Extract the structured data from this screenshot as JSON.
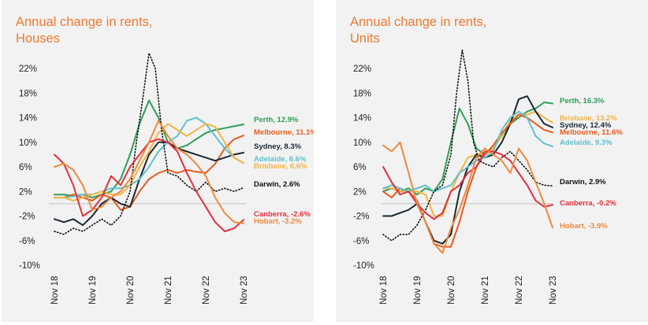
{
  "colors": {
    "accent": "#ee7a30",
    "Perth": "#2e9e57",
    "Melbourne": "#e45b1e",
    "Sydney": "#1b2733",
    "Adelaide": "#5fc0cf",
    "Brisbane": "#f2b540",
    "Darwin": "#111111",
    "Canberra": "#e2303d",
    "Hobart": "#ee8a3c",
    "zero_line": "#bfbfbf",
    "panel_bg": "#f2f2f2"
  },
  "chart_data": [
    {
      "type": "line",
      "title": "Annual change in rents,",
      "subtitle": "Houses",
      "x_tick_labels": [
        "Nov 18",
        "Nov 19",
        "Nov 20",
        "Nov 21",
        "Nov 22",
        "Nov 23"
      ],
      "y_tick_labels": [
        "22%",
        "18%",
        "14%",
        "10%",
        "6%",
        "2%",
        "-2%",
        "-6%",
        "-10%"
      ],
      "ylim": [
        -10,
        24
      ],
      "grid": false,
      "legend": "end-labels",
      "series": [
        {
          "name": "Perth",
          "end_label": "Perth, 12.9%",
          "color": "Perth",
          "dotted": false,
          "x": [
            "2018-11",
            "2019-02",
            "2019-05",
            "2019-08",
            "2019-11",
            "2020-02",
            "2020-05",
            "2020-08",
            "2020-11",
            "2021-02",
            "2021-05",
            "2021-08",
            "2021-11",
            "2022-02",
            "2022-05",
            "2022-08",
            "2022-11",
            "2023-02",
            "2023-05",
            "2023-08",
            "2023-11"
          ],
          "values": [
            1.5,
            1.5,
            1.3,
            1.5,
            1.0,
            1.5,
            2.0,
            4.0,
            8.0,
            13.0,
            16.8,
            14.0,
            10.0,
            9.0,
            9.5,
            10.5,
            11.5,
            12.0,
            12.3,
            12.6,
            12.9
          ]
        },
        {
          "name": "Melbourne",
          "end_label": "Melbourne, 11.1%",
          "color": "Melbourne",
          "dotted": false,
          "x": [
            "2018-11",
            "2019-02",
            "2019-05",
            "2019-08",
            "2019-11",
            "2020-02",
            "2020-05",
            "2020-08",
            "2020-11",
            "2021-02",
            "2021-05",
            "2021-08",
            "2021-11",
            "2022-02",
            "2022-05",
            "2022-08",
            "2022-11",
            "2023-02",
            "2023-05",
            "2023-08",
            "2023-11"
          ],
          "values": [
            1.0,
            1.0,
            1.5,
            1.0,
            0.5,
            1.5,
            1.0,
            -1.0,
            -0.5,
            2.0,
            4.0,
            5.0,
            5.5,
            5.0,
            5.5,
            5.2,
            5.0,
            6.5,
            9.0,
            10.5,
            11.1
          ]
        },
        {
          "name": "Sydney",
          "end_label": "Sydney, 8.3%",
          "color": "Sydney",
          "dotted": false,
          "x": [
            "2018-11",
            "2019-02",
            "2019-05",
            "2019-08",
            "2019-11",
            "2020-02",
            "2020-05",
            "2020-08",
            "2020-11",
            "2021-02",
            "2021-05",
            "2021-08",
            "2021-11",
            "2022-02",
            "2022-05",
            "2022-08",
            "2022-11",
            "2023-02",
            "2023-05",
            "2023-08",
            "2023-11"
          ],
          "values": [
            -2.5,
            -3.0,
            -2.5,
            -3.5,
            -2.0,
            0.0,
            1.0,
            0.0,
            -0.5,
            4.0,
            8.0,
            10.0,
            10.0,
            9.0,
            8.5,
            8.0,
            7.5,
            7.0,
            7.5,
            8.0,
            8.3
          ]
        },
        {
          "name": "Adelaide",
          "end_label": "Adelaide, 6.6%",
          "color": "Adelaide",
          "dotted": false,
          "x": [
            "2018-11",
            "2019-02",
            "2019-05",
            "2019-08",
            "2019-11",
            "2020-02",
            "2020-05",
            "2020-08",
            "2020-11",
            "2021-02",
            "2021-05",
            "2021-08",
            "2021-11",
            "2022-02",
            "2022-05",
            "2022-08",
            "2022-11",
            "2023-02",
            "2023-05",
            "2023-08",
            "2023-11"
          ],
          "values": [
            1.0,
            1.0,
            1.2,
            1.5,
            1.5,
            2.0,
            2.5,
            2.5,
            3.0,
            4.0,
            6.0,
            8.5,
            10.0,
            11.0,
            13.5,
            14.0,
            13.0,
            11.0,
            9.0,
            7.5,
            6.6
          ]
        },
        {
          "name": "Brisbane",
          "end_label": "Brisbane, 6.6%",
          "color": "Brisbane",
          "dotted": false,
          "x": [
            "2018-11",
            "2019-02",
            "2019-05",
            "2019-08",
            "2019-11",
            "2020-02",
            "2020-05",
            "2020-08",
            "2020-11",
            "2021-02",
            "2021-05",
            "2021-08",
            "2021-11",
            "2022-02",
            "2022-05",
            "2022-08",
            "2022-11",
            "2023-02",
            "2023-05",
            "2023-08",
            "2023-11"
          ],
          "values": [
            1.0,
            1.0,
            0.5,
            1.0,
            1.5,
            2.0,
            1.5,
            1.5,
            3.0,
            6.0,
            8.5,
            11.5,
            13.0,
            12.0,
            11.0,
            12.0,
            13.0,
            12.5,
            10.0,
            7.5,
            6.6
          ]
        },
        {
          "name": "Darwin",
          "end_label": "Darwin, 2.6%",
          "color": "Darwin",
          "dotted": true,
          "x": [
            "2018-11",
            "2019-02",
            "2019-05",
            "2019-08",
            "2019-11",
            "2020-02",
            "2020-05",
            "2020-08",
            "2020-11",
            "2021-01",
            "2021-03",
            "2021-05",
            "2021-07",
            "2021-09",
            "2021-11",
            "2022-02",
            "2022-05",
            "2022-08",
            "2022-11",
            "2023-02",
            "2023-05",
            "2023-08",
            "2023-11"
          ],
          "values": [
            -4.5,
            -5.0,
            -4.0,
            -4.5,
            -3.5,
            -2.5,
            -3.5,
            -2.0,
            2.0,
            10.0,
            17.0,
            24.5,
            22.0,
            12.0,
            5.0,
            4.5,
            3.0,
            2.0,
            3.5,
            2.0,
            2.5,
            2.0,
            2.6
          ]
        },
        {
          "name": "Canberra",
          "end_label": "Canberra, -2.6%",
          "color": "Canberra",
          "dotted": false,
          "x": [
            "2018-11",
            "2019-02",
            "2019-05",
            "2019-08",
            "2019-11",
            "2020-02",
            "2020-05",
            "2020-08",
            "2020-11",
            "2021-02",
            "2021-05",
            "2021-08",
            "2021-11",
            "2022-02",
            "2022-05",
            "2022-08",
            "2022-11",
            "2023-02",
            "2023-05",
            "2023-08",
            "2023-11"
          ],
          "values": [
            8.0,
            6.5,
            3.0,
            -2.0,
            -1.0,
            1.0,
            4.5,
            3.0,
            6.0,
            8.0,
            10.0,
            10.5,
            10.0,
            8.5,
            5.0,
            2.0,
            -0.5,
            -3.0,
            -4.5,
            -4.0,
            -2.6
          ]
        },
        {
          "name": "Hobart",
          "end_label": "Hobart, -3.2%",
          "color": "Hobart",
          "dotted": false,
          "x": [
            "2018-11",
            "2019-02",
            "2019-05",
            "2019-08",
            "2019-11",
            "2020-02",
            "2020-05",
            "2020-08",
            "2020-11",
            "2021-02",
            "2021-05",
            "2021-08",
            "2021-11",
            "2022-02",
            "2022-05",
            "2022-08",
            "2022-11",
            "2023-02",
            "2023-05",
            "2023-08",
            "2023-11"
          ],
          "values": [
            6.0,
            6.5,
            5.5,
            3.0,
            -1.0,
            -0.5,
            1.0,
            2.0,
            4.0,
            7.0,
            10.0,
            13.5,
            11.0,
            9.0,
            8.0,
            6.5,
            4.5,
            1.0,
            -1.5,
            -3.0,
            -3.2
          ]
        }
      ]
    },
    {
      "type": "line",
      "title": "Annual change in rents,",
      "subtitle": "Units",
      "x_tick_labels": [
        "Nov 18",
        "Nov 19",
        "Nov 20",
        "Nov 21",
        "Nov 22",
        "Nov 23"
      ],
      "y_tick_labels": [
        "22%",
        "18%",
        "14%",
        "10%",
        "6%",
        "2%",
        "-2%",
        "-6%",
        "-10%"
      ],
      "ylim": [
        -10,
        24
      ],
      "grid": false,
      "legend": "end-labels",
      "series": [
        {
          "name": "Perth",
          "end_label": "Perth, 16.3%",
          "color": "Perth",
          "dotted": false,
          "x": [
            "2018-11",
            "2019-02",
            "2019-05",
            "2019-08",
            "2019-11",
            "2020-02",
            "2020-05",
            "2020-08",
            "2020-11",
            "2021-02",
            "2021-05",
            "2021-08",
            "2021-11",
            "2022-02",
            "2022-05",
            "2022-08",
            "2022-11",
            "2023-02",
            "2023-05",
            "2023-08",
            "2023-11"
          ],
          "values": [
            2.0,
            2.5,
            2.0,
            2.5,
            1.5,
            2.5,
            2.0,
            4.0,
            10.0,
            15.5,
            13.0,
            9.0,
            8.0,
            9.0,
            11.0,
            13.0,
            14.0,
            15.0,
            15.5,
            16.5,
            16.3
          ]
        },
        {
          "name": "Brisbane",
          "end_label": "Brisbane, 13.2%",
          "color": "Brisbane",
          "dotted": false,
          "x": [
            "2018-11",
            "2019-02",
            "2019-05",
            "2019-08",
            "2019-11",
            "2020-02",
            "2020-05",
            "2020-08",
            "2020-11",
            "2021-02",
            "2021-05",
            "2021-08",
            "2021-11",
            "2022-02",
            "2022-05",
            "2022-08",
            "2022-11",
            "2023-02",
            "2023-05",
            "2023-08",
            "2023-11"
          ],
          "values": [
            2.5,
            2.5,
            2.0,
            2.0,
            2.0,
            1.5,
            -2.0,
            -2.0,
            2.0,
            5.0,
            7.5,
            8.0,
            8.0,
            9.0,
            11.0,
            13.5,
            14.5,
            14.5,
            15.0,
            14.0,
            13.2
          ]
        },
        {
          "name": "Sydney",
          "end_label": "Sydney, 12.4%",
          "color": "Sydney",
          "dotted": false,
          "x": [
            "2018-11",
            "2019-02",
            "2019-05",
            "2019-08",
            "2019-11",
            "2020-02",
            "2020-05",
            "2020-08",
            "2020-11",
            "2021-02",
            "2021-05",
            "2021-08",
            "2021-11",
            "2022-02",
            "2022-05",
            "2022-08",
            "2022-11",
            "2023-02",
            "2023-05",
            "2023-08",
            "2023-11"
          ],
          "values": [
            -2.0,
            -2.0,
            -1.5,
            -1.0,
            0.0,
            -3.0,
            -6.0,
            -6.5,
            -5.0,
            2.0,
            6.0,
            8.0,
            7.5,
            8.0,
            10.0,
            13.0,
            17.0,
            17.5,
            15.0,
            13.0,
            12.4
          ]
        },
        {
          "name": "Melbourne",
          "end_label": "Melbourne, 11.6%",
          "color": "Melbourne",
          "dotted": false,
          "x": [
            "2018-11",
            "2019-02",
            "2019-05",
            "2019-08",
            "2019-11",
            "2020-02",
            "2020-05",
            "2020-08",
            "2020-11",
            "2021-02",
            "2021-05",
            "2021-08",
            "2021-11",
            "2022-02",
            "2022-05",
            "2022-08",
            "2022-11",
            "2023-02",
            "2023-05",
            "2023-08",
            "2023-11"
          ],
          "values": [
            2.0,
            1.0,
            2.5,
            2.0,
            0.5,
            -3.0,
            -6.5,
            -7.0,
            -7.0,
            -3.0,
            2.0,
            6.0,
            8.0,
            9.5,
            11.5,
            13.0,
            14.5,
            14.0,
            13.0,
            12.0,
            11.6
          ]
        },
        {
          "name": "Adelaide",
          "end_label": "Adelaide, 9.3%",
          "color": "Adelaide",
          "dotted": false,
          "x": [
            "2018-11",
            "2019-02",
            "2019-05",
            "2019-08",
            "2019-11",
            "2020-02",
            "2020-05",
            "2020-08",
            "2020-11",
            "2021-02",
            "2021-05",
            "2021-08",
            "2021-11",
            "2022-02",
            "2022-05",
            "2022-08",
            "2022-11",
            "2023-02",
            "2023-05",
            "2023-08",
            "2023-11"
          ],
          "values": [
            2.5,
            3.0,
            2.5,
            2.0,
            2.5,
            3.0,
            2.0,
            2.5,
            3.0,
            5.0,
            6.0,
            7.0,
            7.5,
            8.5,
            12.0,
            14.0,
            15.0,
            14.0,
            11.0,
            9.8,
            9.3
          ]
        },
        {
          "name": "Darwin",
          "end_label": "Darwin, 2.9%",
          "color": "Darwin",
          "dotted": true,
          "x": [
            "2018-11",
            "2019-02",
            "2019-05",
            "2019-08",
            "2019-11",
            "2020-02",
            "2020-05",
            "2020-08",
            "2020-11",
            "2021-01",
            "2021-03",
            "2021-05",
            "2021-07",
            "2021-09",
            "2021-11",
            "2022-02",
            "2022-05",
            "2022-08",
            "2022-11",
            "2023-02",
            "2023-05",
            "2023-08",
            "2023-11"
          ],
          "values": [
            -5.0,
            -6.0,
            -5.0,
            -5.0,
            -3.5,
            -1.0,
            2.0,
            3.0,
            8.0,
            18.0,
            25.0,
            20.0,
            10.0,
            7.0,
            6.5,
            6.0,
            7.5,
            8.5,
            7.0,
            5.5,
            3.5,
            3.0,
            2.9
          ]
        },
        {
          "name": "Canberra",
          "end_label": "Canberra, -0.2%",
          "color": "Canberra",
          "dotted": false,
          "x": [
            "2018-11",
            "2019-02",
            "2019-05",
            "2019-08",
            "2019-11",
            "2020-02",
            "2020-05",
            "2020-08",
            "2020-11",
            "2021-02",
            "2021-05",
            "2021-08",
            "2021-11",
            "2022-02",
            "2022-05",
            "2022-08",
            "2022-11",
            "2023-02",
            "2023-05",
            "2023-08",
            "2023-11"
          ],
          "values": [
            6.0,
            3.5,
            1.5,
            2.0,
            0.0,
            -1.5,
            -2.5,
            -1.5,
            2.0,
            3.0,
            5.0,
            6.0,
            8.5,
            8.5,
            8.0,
            7.0,
            5.0,
            3.0,
            0.5,
            -0.5,
            -0.2
          ]
        },
        {
          "name": "Hobart",
          "end_label": "Hobart, -3.9%",
          "color": "Hobart",
          "dotted": false,
          "x": [
            "2018-11",
            "2019-02",
            "2019-05",
            "2019-08",
            "2019-11",
            "2020-02",
            "2020-05",
            "2020-08",
            "2020-11",
            "2021-02",
            "2021-05",
            "2021-08",
            "2021-11",
            "2022-02",
            "2022-05",
            "2022-08",
            "2022-11",
            "2023-02",
            "2023-05",
            "2023-08",
            "2023-11"
          ],
          "values": [
            9.5,
            8.5,
            10.0,
            5.0,
            0.0,
            -3.0,
            -6.5,
            -8.0,
            -4.0,
            -1.0,
            3.0,
            7.5,
            9.0,
            8.0,
            7.0,
            5.0,
            9.0,
            7.0,
            3.5,
            0.0,
            -3.9
          ]
        }
      ]
    }
  ]
}
